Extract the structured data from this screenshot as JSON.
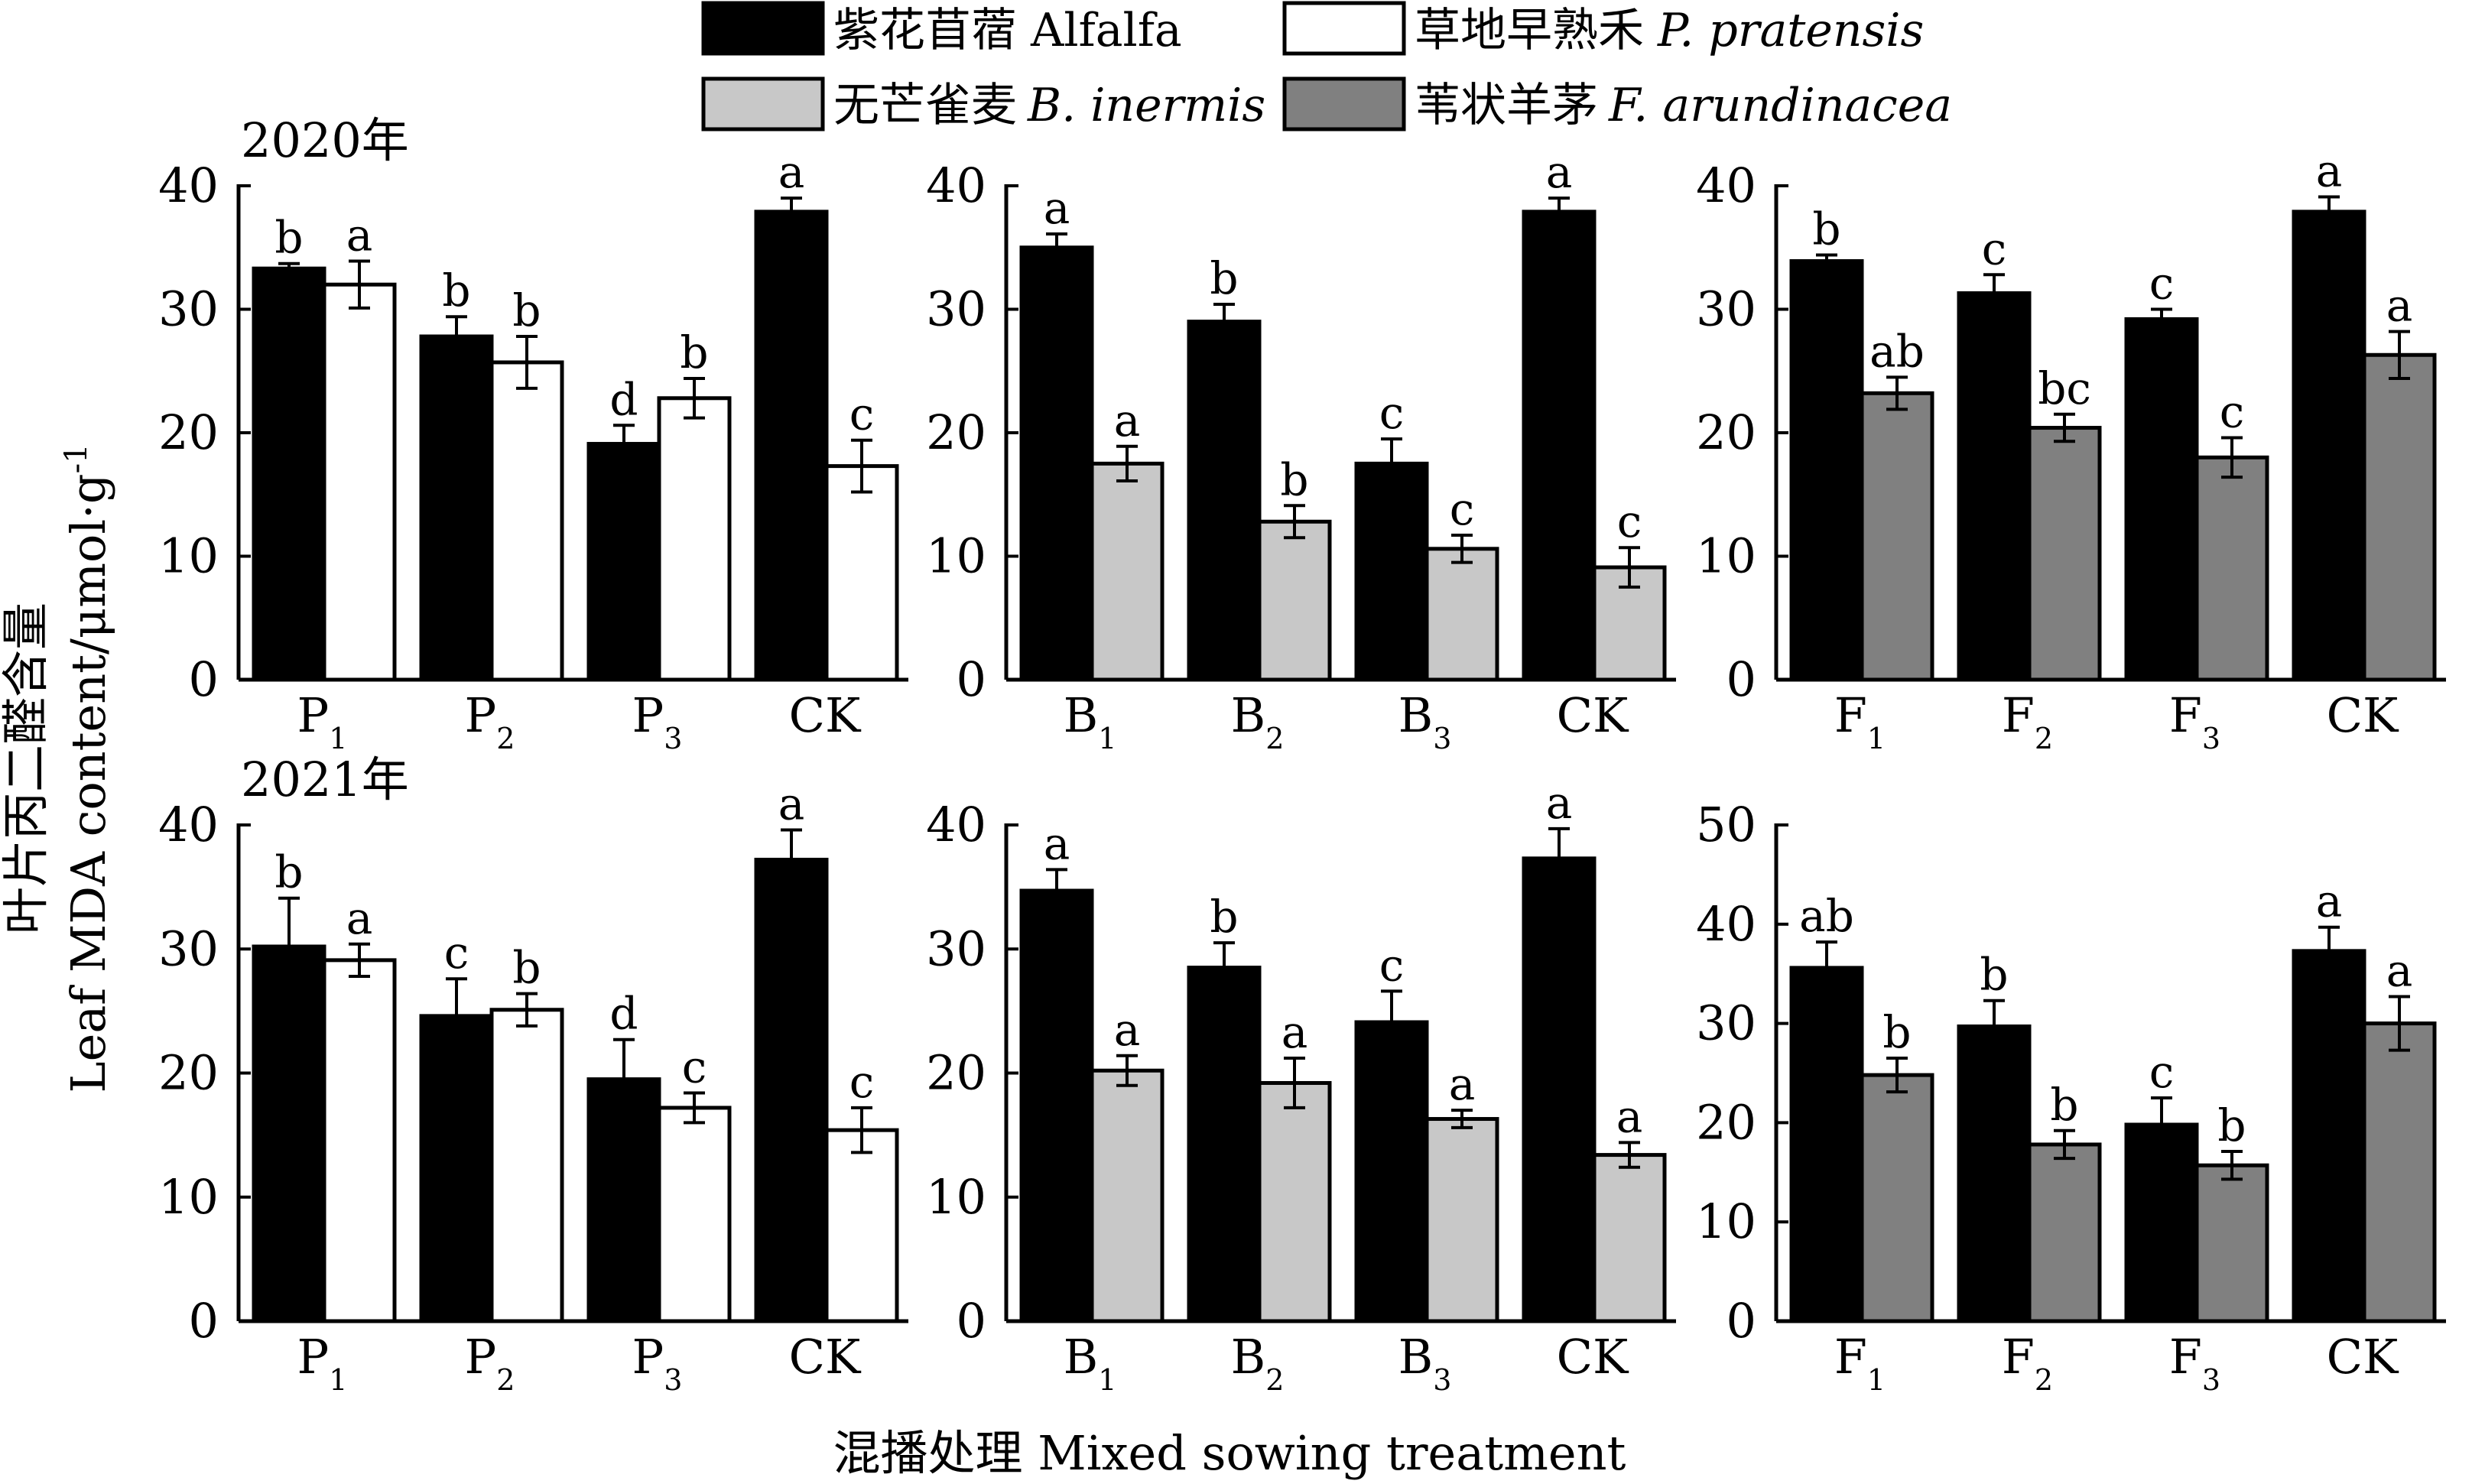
{
  "legend": [
    {
      "cn": "紫花苜蓿",
      "en": "Alfalfa",
      "italic": false,
      "color": "#000000"
    },
    {
      "cn": "草地早熟禾",
      "en": "P. pratensis",
      "italic": true,
      "color": "#ffffff"
    },
    {
      "cn": "无芒雀麦",
      "en": "B. inermis",
      "italic": true,
      "color": "#c8c8c8"
    },
    {
      "cn": "苇状羊茅",
      "en": "F. arundinacea",
      "italic": true,
      "color": "#808080"
    }
  ],
  "ylabel_cn": "叶片丙二醛含量",
  "ylabel_en": "Leaf MDA content/μmol·g",
  "ylabel_sup": "-1",
  "xlabel": "混播处理 Mixed sowing treatment",
  "chart_data": [
    {
      "type": "bar",
      "year": "2020年",
      "ylim": [
        0,
        40
      ],
      "yticks": [
        "0",
        "10",
        "20",
        "30",
        "40"
      ],
      "categories": [
        {
          "m": "P",
          "s": "1"
        },
        {
          "m": "P",
          "s": "2"
        },
        {
          "m": "P",
          "s": "3"
        },
        {
          "m": "CK",
          "s": ""
        }
      ],
      "series": [
        {
          "color": "#000000",
          "values": [
            33.3,
            27.8,
            19.1,
            37.9
          ],
          "errors": [
            0.4,
            1.6,
            1.5,
            1.1
          ],
          "letters": [
            "b",
            "b",
            "d",
            "a"
          ]
        },
        {
          "color": "#ffffff",
          "values": [
            32.0,
            25.7,
            22.8,
            17.3
          ],
          "errors": [
            1.9,
            2.1,
            1.6,
            2.1
          ],
          "letters": [
            "a",
            "b",
            "b",
            "c"
          ]
        }
      ]
    },
    {
      "type": "bar",
      "year": "",
      "ylim": [
        0,
        40
      ],
      "yticks": [
        "0",
        "10",
        "20",
        "30",
        "40"
      ],
      "categories": [
        {
          "m": "B",
          "s": "1"
        },
        {
          "m": "B",
          "s": "2"
        },
        {
          "m": "B",
          "s": "3"
        },
        {
          "m": "CK",
          "s": ""
        }
      ],
      "series": [
        {
          "color": "#000000",
          "values": [
            35.0,
            29.0,
            17.5,
            37.9
          ],
          "errors": [
            1.1,
            1.4,
            2.0,
            1.1
          ],
          "letters": [
            "a",
            "b",
            "c",
            "a"
          ]
        },
        {
          "color": "#c8c8c8",
          "values": [
            17.5,
            12.8,
            10.6,
            9.1
          ],
          "errors": [
            1.4,
            1.3,
            1.1,
            1.6
          ],
          "letters": [
            "a",
            "b",
            "c",
            "c"
          ]
        }
      ]
    },
    {
      "type": "bar",
      "year": "",
      "ylim": [
        0,
        40
      ],
      "yticks": [
        "0",
        "10",
        "20",
        "30",
        "40"
      ],
      "categories": [
        {
          "m": "F",
          "s": "1"
        },
        {
          "m": "F",
          "s": "2"
        },
        {
          "m": "F",
          "s": "3"
        },
        {
          "m": "CK",
          "s": ""
        }
      ],
      "series": [
        {
          "color": "#000000",
          "values": [
            33.9,
            31.3,
            29.2,
            37.9
          ],
          "errors": [
            0.5,
            1.5,
            0.8,
            1.2
          ],
          "letters": [
            "b",
            "c",
            "c",
            "a"
          ]
        },
        {
          "color": "#808080",
          "values": [
            23.2,
            20.4,
            18.0,
            26.3
          ],
          "errors": [
            1.3,
            1.1,
            1.6,
            1.9
          ],
          "letters": [
            "ab",
            "bc",
            "c",
            "a"
          ]
        }
      ]
    },
    {
      "type": "bar",
      "year": "2021年",
      "ylim": [
        0,
        40
      ],
      "yticks": [
        "0",
        "10",
        "20",
        "30",
        "40"
      ],
      "categories": [
        {
          "m": "P",
          "s": "1"
        },
        {
          "m": "P",
          "s": "2"
        },
        {
          "m": "P",
          "s": "3"
        },
        {
          "m": "CK",
          "s": ""
        }
      ],
      "series": [
        {
          "color": "#000000",
          "values": [
            30.2,
            24.6,
            19.5,
            37.2
          ],
          "errors": [
            3.9,
            3.0,
            3.2,
            2.4
          ],
          "letters": [
            "b",
            "c",
            "d",
            "a"
          ]
        },
        {
          "color": "#ffffff",
          "values": [
            29.1,
            25.1,
            17.2,
            15.4
          ],
          "errors": [
            1.3,
            1.3,
            1.2,
            1.8
          ],
          "letters": [
            "a",
            "b",
            "c",
            "c"
          ]
        }
      ]
    },
    {
      "type": "bar",
      "year": "",
      "ylim": [
        0,
        40
      ],
      "yticks": [
        "0",
        "10",
        "20",
        "30",
        "40"
      ],
      "categories": [
        {
          "m": "B",
          "s": "1"
        },
        {
          "m": "B",
          "s": "2"
        },
        {
          "m": "B",
          "s": "3"
        },
        {
          "m": "CK",
          "s": ""
        }
      ],
      "series": [
        {
          "color": "#000000",
          "values": [
            34.7,
            28.5,
            24.1,
            37.3
          ],
          "errors": [
            1.7,
            2.0,
            2.5,
            2.4
          ],
          "letters": [
            "a",
            "b",
            "c",
            "a"
          ]
        },
        {
          "color": "#c8c8c8",
          "values": [
            20.2,
            19.2,
            16.3,
            13.4
          ],
          "errors": [
            1.2,
            2.0,
            0.7,
            1.0
          ],
          "letters": [
            "a",
            "a",
            "a",
            "a"
          ]
        }
      ]
    },
    {
      "type": "bar",
      "year": "",
      "ylim": [
        0,
        50
      ],
      "yticks": [
        "0",
        "10",
        "20",
        "30",
        "40",
        "50"
      ],
      "categories": [
        {
          "m": "F",
          "s": "1"
        },
        {
          "m": "F",
          "s": "2"
        },
        {
          "m": "F",
          "s": "3"
        },
        {
          "m": "CK",
          "s": ""
        }
      ],
      "series": [
        {
          "color": "#000000",
          "values": [
            35.6,
            29.7,
            19.8,
            37.3
          ],
          "errors": [
            2.6,
            2.6,
            2.7,
            2.4
          ],
          "letters": [
            "ab",
            "b",
            "c",
            "a"
          ]
        },
        {
          "color": "#808080",
          "values": [
            24.8,
            17.8,
            15.7,
            30.0
          ],
          "errors": [
            1.7,
            1.4,
            1.4,
            2.7
          ],
          "letters": [
            "b",
            "b",
            "b",
            "a"
          ]
        }
      ]
    }
  ]
}
